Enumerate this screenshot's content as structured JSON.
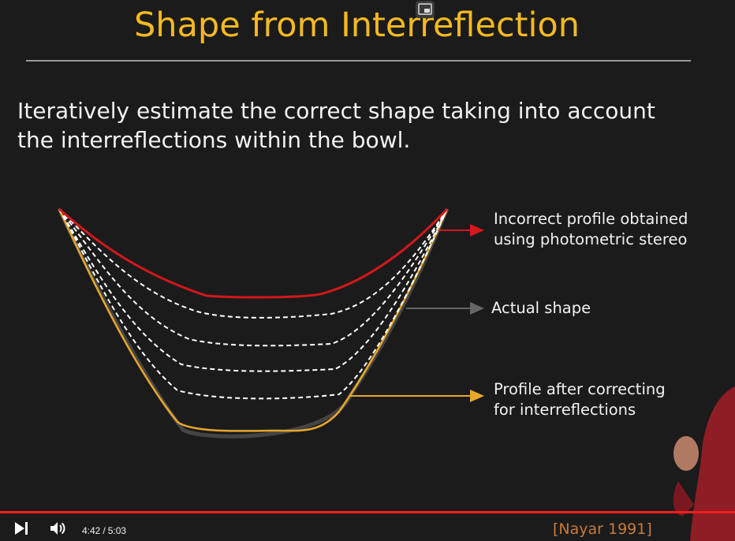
{
  "slide": {
    "title": "Shape from Interreflection",
    "body_line1": "Iteratively estimate the correct shape taking into account",
    "body_line2": "the interreflections within the bowl.",
    "labels": {
      "incorrect_line1": "Incorrect profile obtained",
      "incorrect_line2": "using photometric stereo",
      "actual": "Actual shape",
      "corrected_line1": "Profile after correcting",
      "corrected_line2": "for interreflections"
    },
    "citation": "[Nayar 1991]",
    "colors": {
      "title": "#f5b921",
      "incorrect_profile": "#d4171b",
      "corrected_profile": "#e8a62b",
      "iterations": "#ffffff",
      "actual_shape": "#666666"
    }
  },
  "player": {
    "current_time": "4:42",
    "duration": "5:03",
    "progress_fraction": 0.93,
    "icons": {
      "next": "skip-next-icon",
      "volume": "volume-icon",
      "pip": "picture-in-picture-icon"
    }
  }
}
